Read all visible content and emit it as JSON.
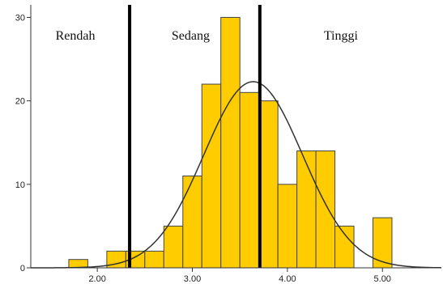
{
  "chart_data": {
    "type": "bar",
    "subtype": "histogram",
    "bin_width": 0.2,
    "bins": [
      {
        "x0": 1.7,
        "x1": 1.9,
        "count": 1
      },
      {
        "x0": 1.9,
        "x1": 2.1,
        "count": 0
      },
      {
        "x0": 2.1,
        "x1": 2.3,
        "count": 2
      },
      {
        "x0": 2.3,
        "x1": 2.5,
        "count": 2
      },
      {
        "x0": 2.5,
        "x1": 2.7,
        "count": 2
      },
      {
        "x0": 2.7,
        "x1": 2.9,
        "count": 5
      },
      {
        "x0": 2.9,
        "x1": 3.1,
        "count": 11
      },
      {
        "x0": 3.1,
        "x1": 3.3,
        "count": 22
      },
      {
        "x0": 3.3,
        "x1": 3.5,
        "count": 30
      },
      {
        "x0": 3.5,
        "x1": 3.7,
        "count": 21
      },
      {
        "x0": 3.7,
        "x1": 3.9,
        "count": 20
      },
      {
        "x0": 3.9,
        "x1": 4.1,
        "count": 10
      },
      {
        "x0": 4.1,
        "x1": 4.3,
        "count": 14
      },
      {
        "x0": 4.3,
        "x1": 4.5,
        "count": 14
      },
      {
        "x0": 4.5,
        "x1": 4.7,
        "count": 5
      },
      {
        "x0": 4.7,
        "x1": 4.9,
        "count": 0
      },
      {
        "x0": 4.9,
        "x1": 5.1,
        "count": 6
      }
    ],
    "normal_curve": {
      "mean": 3.64,
      "peak": 22.3,
      "sd": 0.52
    },
    "cutoffs": [
      2.34,
      3.71
    ],
    "region_labels": [
      "Rendah",
      "Sedang",
      "Tinggi"
    ],
    "x_ticks": [
      2.0,
      3.0,
      4.0,
      5.0
    ],
    "x_tick_labels": [
      "2.00",
      "3.00",
      "4.00",
      "5.00"
    ],
    "y_ticks": [
      0,
      10,
      20,
      30
    ],
    "y_tick_labels": [
      "0",
      "10",
      "20",
      "30"
    ],
    "xlim": [
      1.3,
      5.62
    ],
    "ylim": [
      0,
      31.5
    ],
    "bar_color": "#FFCC00",
    "bar_edge_color": "#444444",
    "curve_color": "#333333",
    "cutoff_color": "#000000",
    "grid": false,
    "title": "",
    "xlabel": "",
    "ylabel": ""
  }
}
